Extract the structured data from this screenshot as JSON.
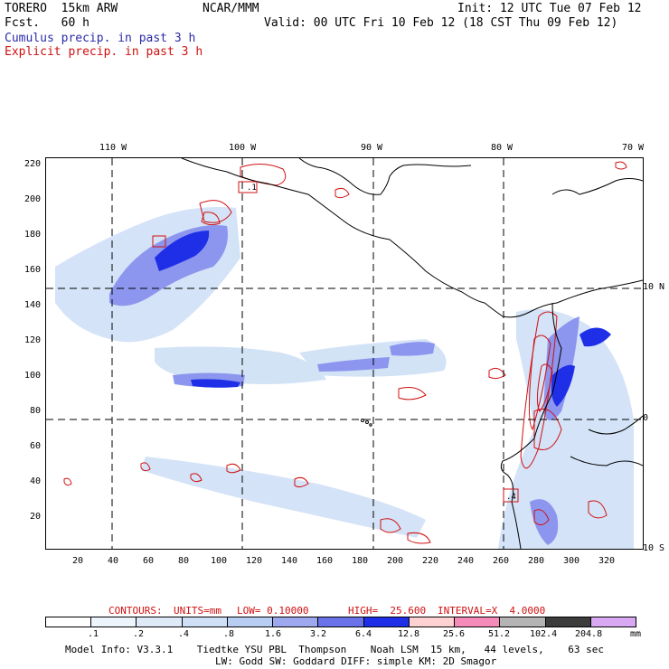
{
  "header": {
    "model_line1": "TORERO  15km ARW",
    "model_line2": "Fcst.   60 h",
    "org": "NCAR/MMM",
    "init": "Init: 12 UTC Tue 07 Feb 12",
    "valid": "Valid: 00 UTC Fri 10 Feb 12 (18 CST Thu 09 Feb 12)",
    "field1": "Cumulus precip. in past 3 h",
    "field2": "Explicit precip. in past 3 h"
  },
  "map": {
    "top_ticks": [
      "110 W",
      "100 W",
      "90 W",
      "80 W",
      "70 W"
    ],
    "left_ticks": [
      "220",
      "200",
      "180",
      "160",
      "140",
      "120",
      "100",
      "80",
      "60",
      "40",
      "20"
    ],
    "bottom_ticks": [
      "20",
      "40",
      "60",
      "80",
      "100",
      "120",
      "140",
      "160",
      "180",
      "200",
      "220",
      "240",
      "260",
      "280",
      "300",
      "320"
    ],
    "right_ticks": [
      "10 N",
      "0",
      "10 S"
    ],
    "box_labels": [
      ".1",
      ".4"
    ],
    "colors": {
      "cumulus": "#2a2aa8",
      "explicit": "#d01010",
      "coast": "#000000",
      "grid": "#000000"
    }
  },
  "contours_line": {
    "label": "CONTOURS:",
    "units": "UNITS=mm",
    "low": "LOW= 0.10000",
    "high": "HIGH=  25.600",
    "interval": "INTERVAL=X  4.0000"
  },
  "legend": {
    "unit": "mm",
    "labels": [
      ".1",
      ".2",
      ".4",
      ".8",
      "1.6",
      "3.2",
      "6.4",
      "12.8",
      "25.6",
      "51.2",
      "102.4",
      "204.8"
    ],
    "colors": [
      "#ffffff",
      "#eef4fb",
      "#dfeaf8",
      "#cfe0f6",
      "#b8cdf2",
      "#9ea8ee",
      "#6a72ea",
      "#1f2fe8",
      "#ffd2d2",
      "#f48bb8",
      "#b4b4b4",
      "#3c3c3c",
      "#d9a8f2"
    ]
  },
  "footer": {
    "line1": "Model Info: V3.3.1    Tiedtke YSU PBL  Thompson    Noah LSM  15 km,   44 levels,    63 sec",
    "line2": "LW: Godd SW: Goddard DIFF: simple KM: 2D Smagor"
  }
}
